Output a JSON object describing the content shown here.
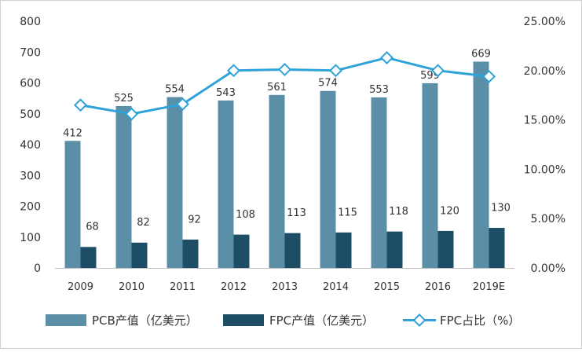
{
  "chart_data": {
    "type": "bar",
    "categories": [
      "2009",
      "2010",
      "2011",
      "2012",
      "2013",
      "2014",
      "2015",
      "2016",
      "2019E"
    ],
    "series": [
      {
        "name": "PCB产值（亿美元）",
        "kind": "bar",
        "axis": "left",
        "color": "#5b8fa8",
        "values": [
          412,
          525,
          554,
          543,
          561,
          574,
          553,
          599,
          669
        ]
      },
      {
        "name": "FPC产值（亿美元）",
        "kind": "bar",
        "axis": "left",
        "color": "#1e4e66",
        "values": [
          68,
          82,
          92,
          108,
          113,
          115,
          118,
          120,
          130
        ]
      },
      {
        "name": "FPC占比（%）",
        "kind": "line",
        "axis": "right",
        "color": "#2ea3d8",
        "values": [
          16.5,
          15.6,
          16.6,
          20.0,
          20.1,
          20.0,
          21.3,
          20.0,
          19.4
        ]
      }
    ],
    "ylim": [
      0,
      800
    ],
    "yticks": [
      "0",
      "100",
      "200",
      "300",
      "400",
      "500",
      "600",
      "700",
      "800"
    ],
    "y2lim": [
      0,
      25
    ],
    "y2ticks": [
      "0.00%",
      "5.00%",
      "10.00%",
      "15.00%",
      "20.00%",
      "25.00%"
    ],
    "legend": [
      "PCB产值（亿美元）",
      "FPC产值（亿美元）",
      "FPC占比（%）"
    ],
    "legend_position": "bottom",
    "grid": false
  }
}
